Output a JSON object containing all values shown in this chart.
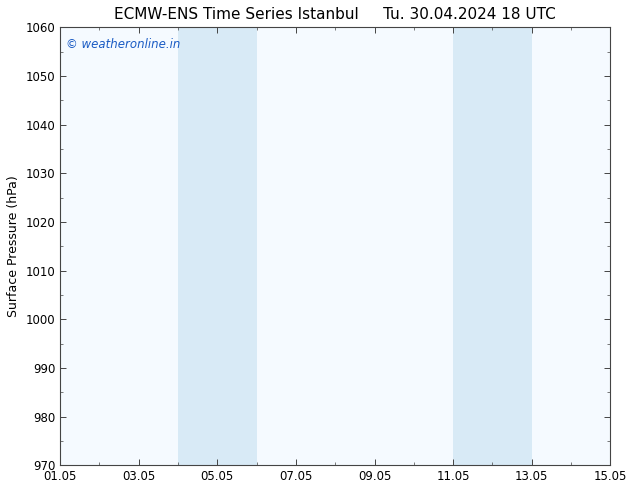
{
  "title_left": "ECMW-ENS Time Series Istanbul",
  "title_right": "Tu. 30.04.2024 18 UTC",
  "ylabel": "Surface Pressure (hPa)",
  "ylim": [
    970,
    1060
  ],
  "yticks": [
    970,
    980,
    990,
    1000,
    1010,
    1020,
    1030,
    1040,
    1050,
    1060
  ],
  "xlim_start": 0,
  "xlim_end": 14,
  "xtick_positions": [
    0,
    2,
    4,
    6,
    8,
    10,
    12,
    14
  ],
  "xtick_labels": [
    "01.05",
    "03.05",
    "05.05",
    "07.05",
    "09.05",
    "11.05",
    "13.05",
    "15.05"
  ],
  "shaded_bands": [
    {
      "x_start": 3.0,
      "x_end": 5.0
    },
    {
      "x_start": 10.0,
      "x_end": 12.0
    }
  ],
  "band_color": "#d8eaf6",
  "plot_bg_color": "#f5faff",
  "background_color": "#ffffff",
  "watermark_text": "© weatheronline.in",
  "watermark_color": "#1a5bc4",
  "title_fontsize": 11,
  "axis_label_fontsize": 9,
  "tick_fontsize": 8.5,
  "watermark_fontsize": 8.5
}
